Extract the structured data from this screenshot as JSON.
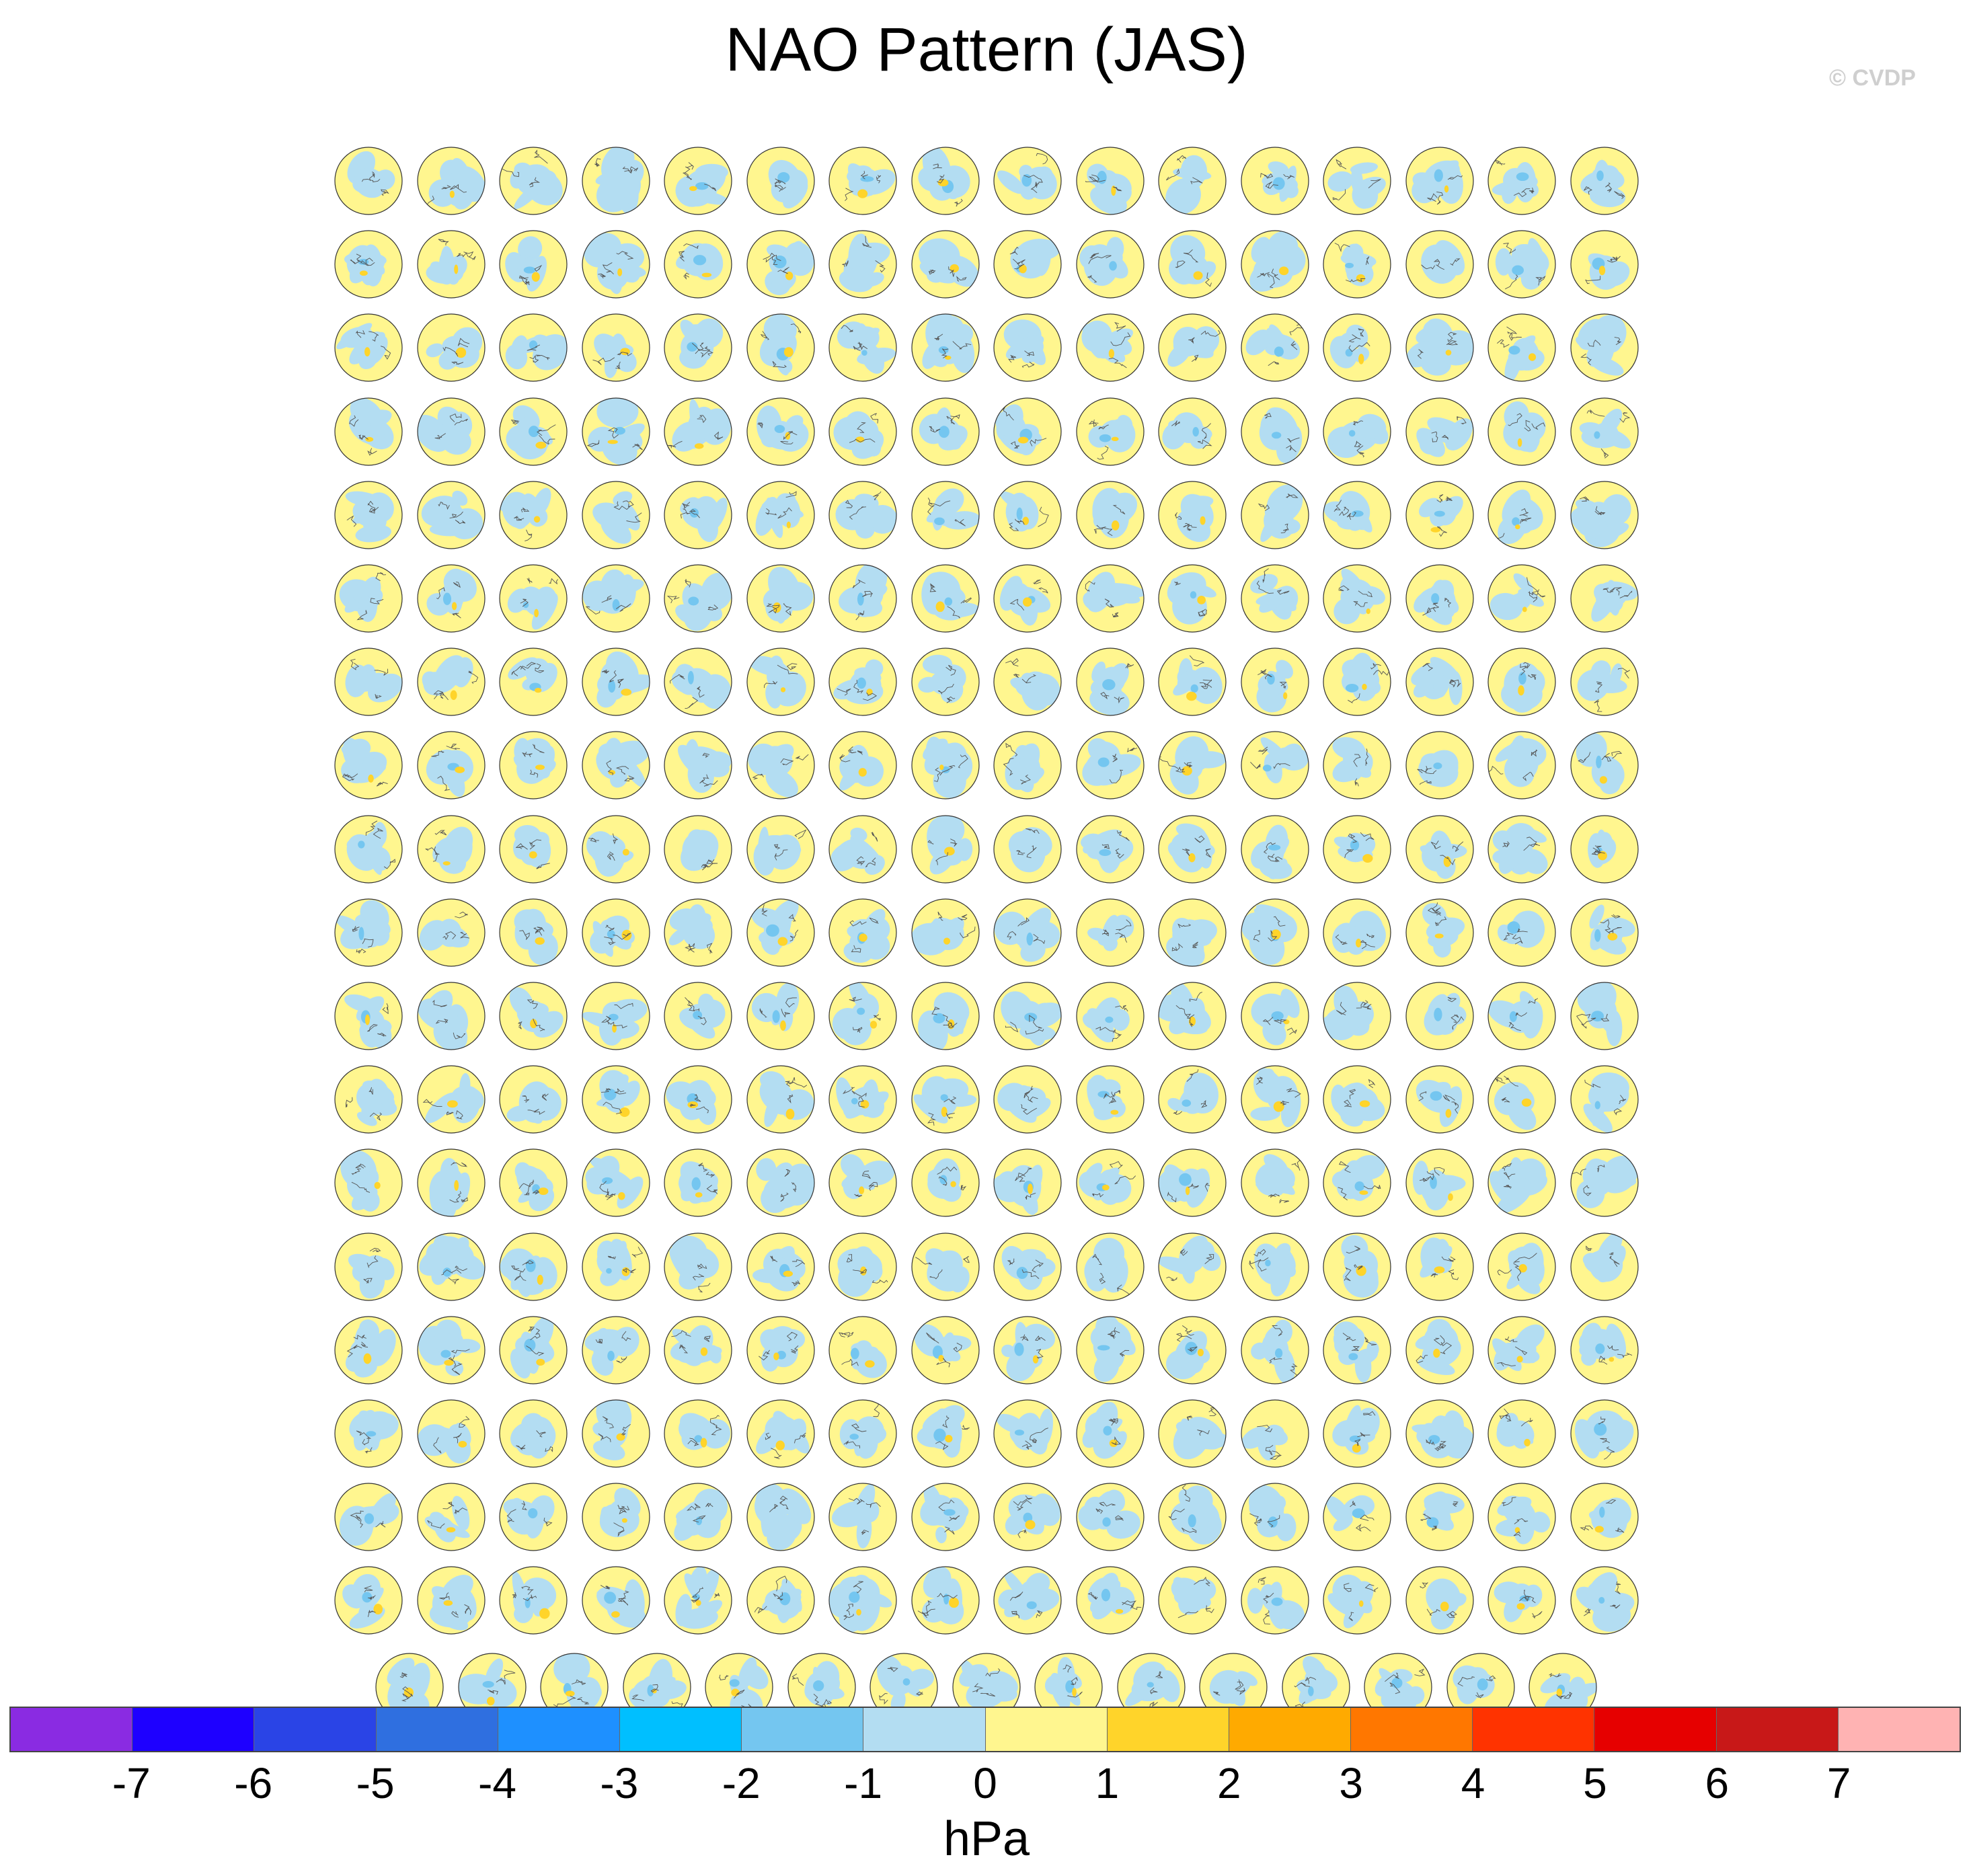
{
  "title": "NAO Pattern (JAS)",
  "credit": "© CVDP",
  "panel_grid": {
    "full_rows": 18,
    "columns": 16,
    "last_row_count": 15
  },
  "colorbar": {
    "units": "hPa",
    "tick_labels": [
      "-7",
      "-6",
      "-5",
      "-4",
      "-3",
      "-2",
      "-1",
      "0",
      "1",
      "2",
      "3",
      "4",
      "5",
      "6",
      "7"
    ],
    "colors": [
      "#8a2be2",
      "#1e00ff",
      "#2a44e6",
      "#2f6fe0",
      "#1e90ff",
      "#00bfff",
      "#74c6f0",
      "#b3ddf2",
      "#fff68f",
      "#ffd42a",
      "#ffaa00",
      "#ff7700",
      "#ff3300",
      "#e60000",
      "#c81818",
      "#ffb3b3"
    ]
  },
  "map_colors": {
    "positive": "#fff68f",
    "negative": "#b3ddf2",
    "strong_positive": "#ffd42a",
    "strong_negative": "#74c6f0",
    "coast": "#555555"
  }
}
